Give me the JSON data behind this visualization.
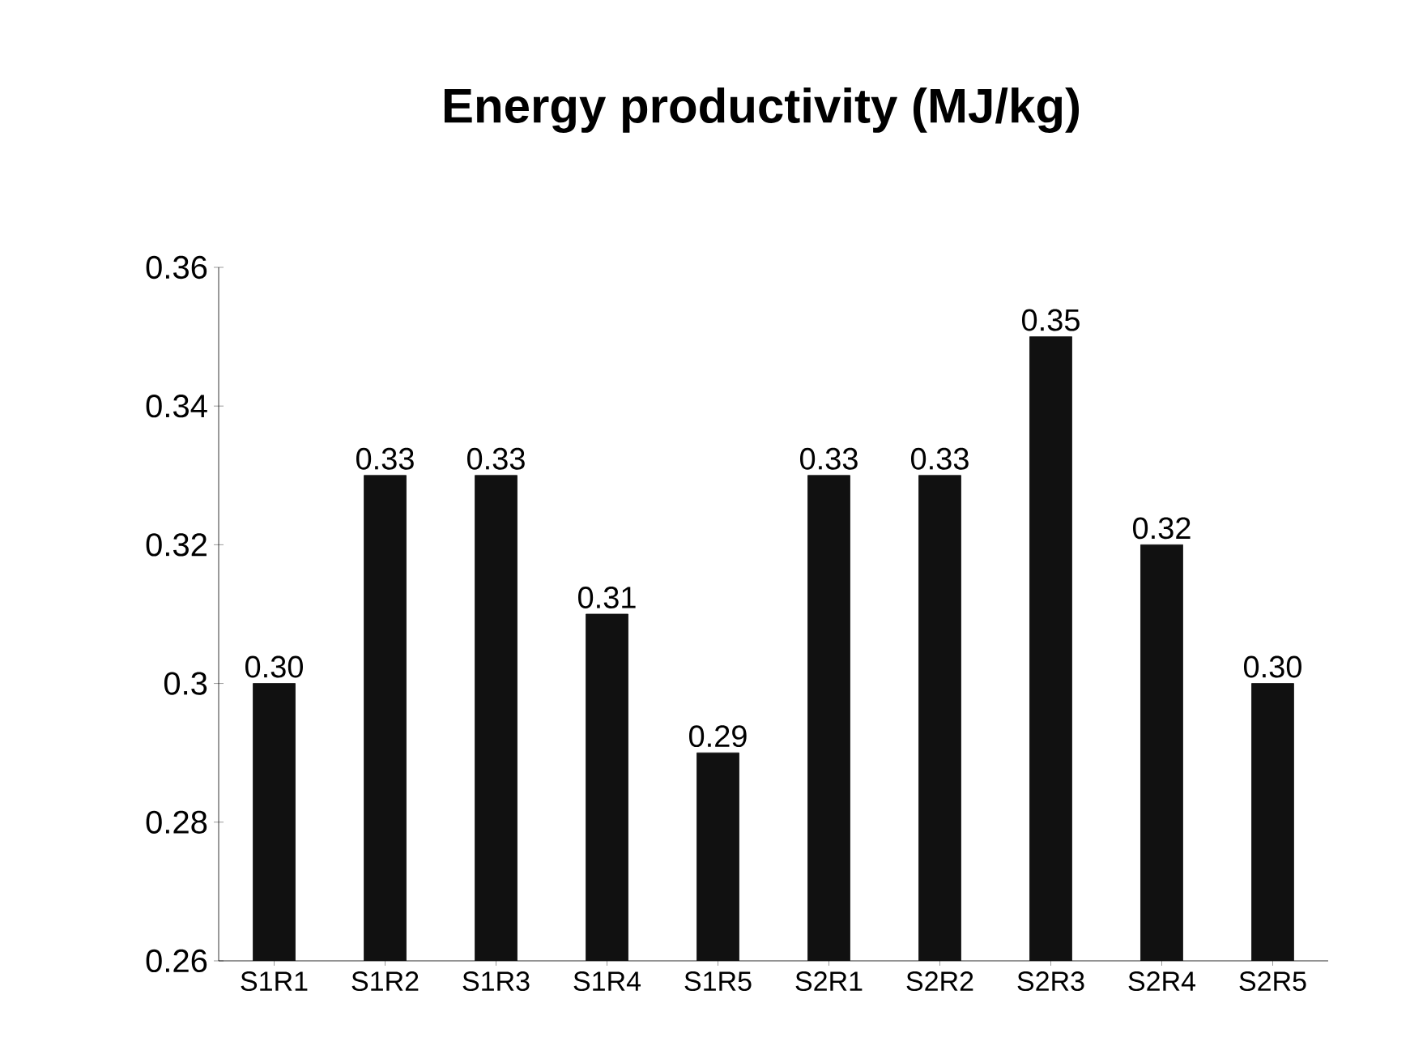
{
  "chart_data": {
    "type": "bar",
    "title": "Energy productivity (MJ/kg)",
    "categories": [
      "S1R1",
      "S1R2",
      "S1R3",
      "S1R4",
      "S1R5",
      "S2R1",
      "S2R2",
      "S2R3",
      "S2R4",
      "S2R5"
    ],
    "values": [
      0.3,
      0.33,
      0.33,
      0.31,
      0.29,
      0.33,
      0.33,
      0.35,
      0.32,
      0.3
    ],
    "value_labels": [
      "0.30",
      "0.33",
      "0.33",
      "0.31",
      "0.29",
      "0.33",
      "0.33",
      "0.35",
      "0.32",
      "0.30"
    ],
    "color": "#111111",
    "ylim": [
      0.26,
      0.36
    ],
    "yticks": [
      0.26,
      0.28,
      0.3,
      0.32,
      0.34,
      0.36
    ]
  }
}
